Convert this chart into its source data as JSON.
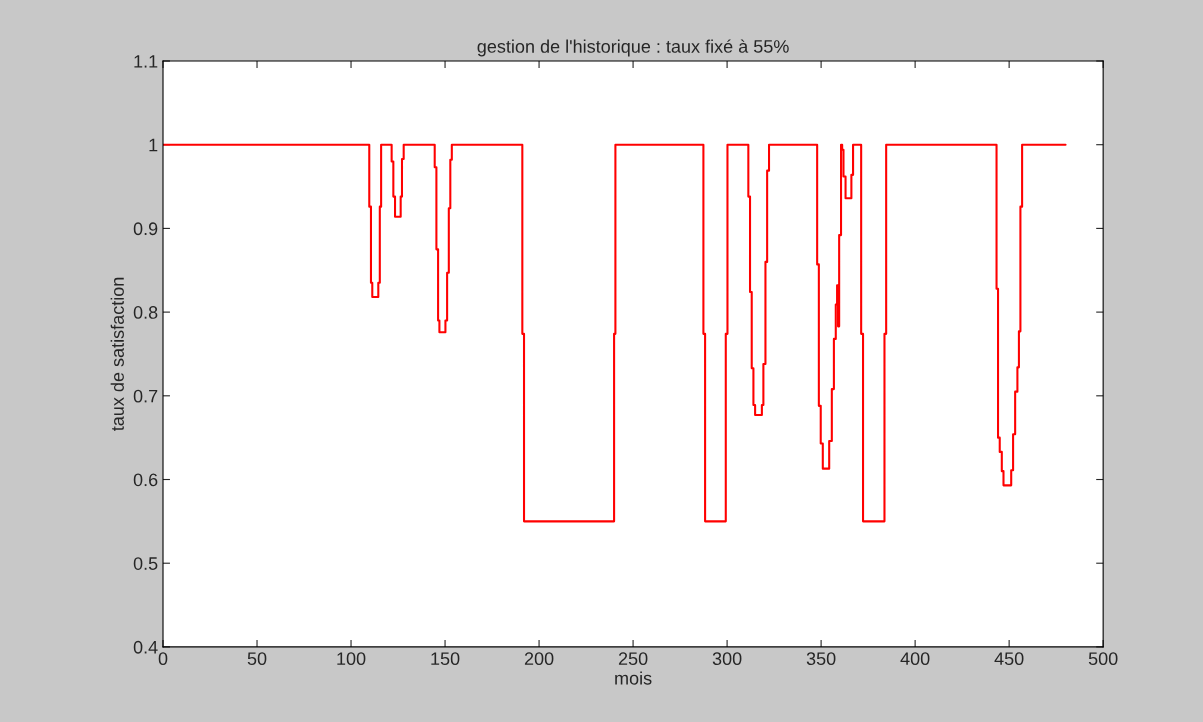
{
  "chart_data": {
    "type": "line",
    "title": "gestion de l'historique : taux fixé à 55%",
    "xlabel": "mois",
    "ylabel": "taux de satisfaction",
    "xlim": [
      0,
      500
    ],
    "ylim": [
      0.4,
      1.1
    ],
    "xticks": [
      0,
      50,
      100,
      150,
      200,
      250,
      300,
      350,
      400,
      450,
      500
    ],
    "yticks": [
      0.4,
      0.5,
      0.6,
      0.7,
      0.8,
      0.9,
      1,
      1.1
    ],
    "grid": false,
    "legend": false,
    "marker": "none",
    "line_style": "solid",
    "series": [
      {
        "color": "#ff0000",
        "x": [
          0,
          109.7,
          109.7,
          110.6,
          110.6,
          111.3,
          111.3,
          114.5,
          114.5,
          115.3,
          115.3,
          116,
          116,
          121.6,
          121.6,
          122.5,
          122.5,
          123.4,
          123.4,
          126.4,
          126.4,
          127.1,
          127.1,
          128,
          128,
          144.5,
          144.5,
          145.4,
          145.4,
          146.3,
          146.3,
          147,
          147,
          150.2,
          150.2,
          151.1,
          151.1,
          152,
          152,
          152.8,
          152.8,
          153.6,
          153.6,
          191.1,
          191.1,
          192,
          192,
          239.9,
          239.9,
          240.6,
          240.6,
          287.4,
          287.4,
          288.3,
          288.3,
          299.3,
          299.3,
          300.2,
          300.2,
          311.3,
          311.3,
          312.2,
          312.2,
          313.1,
          313.1,
          314,
          314,
          314.9,
          314.9,
          318.5,
          318.5,
          319.3,
          319.3,
          320.4,
          320.4,
          321.3,
          321.3,
          322.3,
          322.3,
          347.9,
          347.9,
          348.8,
          348.8,
          349.8,
          349.8,
          350.9,
          350.9,
          354.3,
          354.3,
          355.7,
          355.7,
          356.8,
          356.8,
          357.8,
          357.8,
          358.5,
          358.5,
          359,
          359,
          359.6,
          359.6,
          360.6,
          360.6,
          361.2,
          361.2,
          361.9,
          361.9,
          363,
          363,
          366.1,
          366.1,
          367,
          367,
          371.3,
          371.3,
          372.3,
          372.3,
          383.7,
          383.7,
          384.6,
          384.6,
          443.3,
          443.3,
          444.1,
          444.1,
          445,
          445,
          446.1,
          446.1,
          447,
          447,
          451.1,
          451.1,
          452.1,
          452.1,
          453.2,
          453.2,
          454.4,
          454.4,
          455.2,
          455.2,
          456,
          456,
          456.9,
          456.9,
          480
        ],
        "values": [
          1,
          1,
          0.926,
          0.926,
          0.835,
          0.835,
          0.818,
          0.818,
          0.835,
          0.835,
          0.926,
          0.926,
          1,
          1,
          0.98,
          0.98,
          0.938,
          0.938,
          0.914,
          0.914,
          0.938,
          0.938,
          0.983,
          0.983,
          1,
          1,
          0.973,
          0.973,
          0.875,
          0.875,
          0.79,
          0.79,
          0.776,
          0.776,
          0.79,
          0.79,
          0.847,
          0.847,
          0.924,
          0.924,
          0.982,
          0.982,
          1,
          1,
          0.774,
          0.774,
          0.55,
          0.55,
          0.774,
          0.774,
          1,
          1,
          0.774,
          0.774,
          0.55,
          0.55,
          0.774,
          0.774,
          1,
          1,
          0.938,
          0.938,
          0.824,
          0.824,
          0.733,
          0.733,
          0.689,
          0.689,
          0.677,
          0.677,
          0.689,
          0.689,
          0.738,
          0.738,
          0.86,
          0.86,
          0.969,
          0.969,
          1,
          1,
          0.857,
          0.857,
          0.688,
          0.688,
          0.643,
          0.643,
          0.613,
          0.613,
          0.646,
          0.646,
          0.708,
          0.708,
          0.768,
          0.768,
          0.809,
          0.809,
          0.832,
          0.832,
          0.783,
          0.783,
          0.892,
          0.892,
          1,
          1,
          0.994,
          0.994,
          0.962,
          0.962,
          0.936,
          0.936,
          0.964,
          0.964,
          1,
          1,
          0.774,
          0.774,
          0.55,
          0.55,
          0.774,
          0.774,
          1,
          1,
          0.828,
          0.828,
          0.65,
          0.65,
          0.633,
          0.633,
          0.61,
          0.61,
          0.593,
          0.593,
          0.611,
          0.611,
          0.654,
          0.654,
          0.705,
          0.705,
          0.734,
          0.734,
          0.777,
          0.777,
          0.926,
          0.926,
          1,
          1
        ]
      }
    ]
  }
}
